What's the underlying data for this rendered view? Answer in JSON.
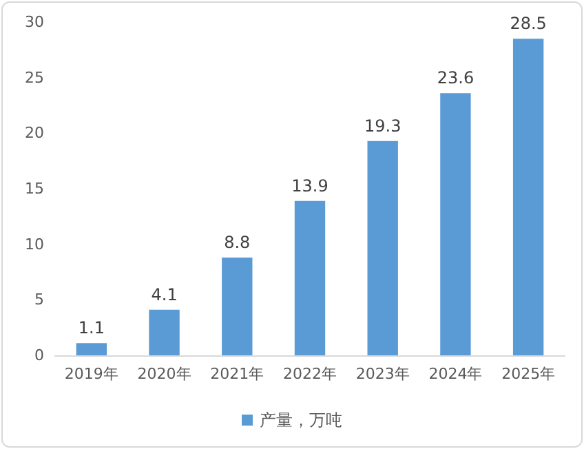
{
  "chart_data": {
    "type": "bar",
    "categories": [
      "2019年",
      "2020年",
      "2021年",
      "2022年",
      "2023年",
      "2024年",
      "2025年"
    ],
    "series": [
      {
        "name": "产量，万吨",
        "color": "#5b9bd5",
        "values": [
          1.1,
          4.1,
          8.8,
          13.9,
          19.3,
          23.6,
          28.5
        ]
      }
    ],
    "ylim": [
      0,
      30
    ],
    "yticks": [
      0,
      5,
      10,
      15,
      20,
      25,
      30
    ],
    "data_labels": true,
    "legend": "bottom",
    "grid": false
  }
}
